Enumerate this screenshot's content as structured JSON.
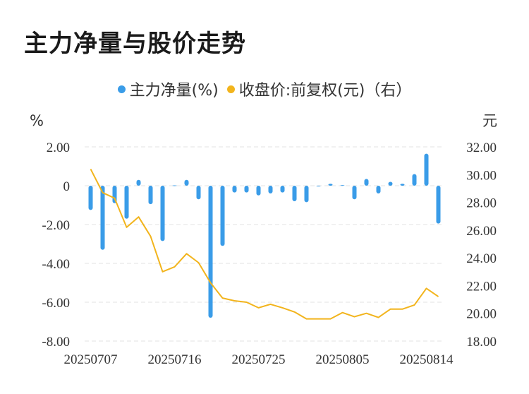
{
  "title": "主力净量与股价走势",
  "legend": {
    "series1": "主力净量(%)",
    "series2": "收盘价:前复权(元)（右）"
  },
  "colors": {
    "bars": "#3a9ce8",
    "line": "#f2b41c",
    "grid": "#e3e3e3"
  },
  "chart_data": {
    "type": "bar",
    "title": "主力净量与股价走势",
    "y_left_unit": "%",
    "y_right_unit": "元",
    "ylim_left": [
      -8,
      2
    ],
    "ylim_right": [
      18,
      32
    ],
    "y_left_ticks": [
      "2.00",
      "0",
      "-2.00",
      "-4.00",
      "-6.00",
      "-8.00"
    ],
    "y_right_ticks": [
      "32.00",
      "30.00",
      "28.00",
      "26.00",
      "24.00",
      "22.00",
      "20.00",
      "18.00"
    ],
    "x_tick_labels": [
      "20250707",
      "20250716",
      "20250725",
      "20250805",
      "20250814"
    ],
    "x_tick_indices": [
      0,
      7,
      14,
      21,
      28
    ],
    "series": [
      {
        "name": "主力净量(%)",
        "type": "bar",
        "axis": "left",
        "values": [
          -1.25,
          -3.3,
          -0.9,
          -1.7,
          0.3,
          -0.95,
          -2.85,
          0.02,
          0.3,
          -0.7,
          -6.8,
          -3.1,
          -0.35,
          -0.35,
          -0.5,
          -0.4,
          -0.35,
          -0.8,
          -0.85,
          -0.03,
          0.1,
          0.03,
          -0.7,
          0.35,
          -0.4,
          0.2,
          0.1,
          0.6,
          1.65,
          -1.95
        ]
      },
      {
        "name": "收盘价:前复权(元)（右）",
        "type": "line",
        "axis": "right",
        "values": [
          30.4,
          28.7,
          28.3,
          26.2,
          26.95,
          25.55,
          23.0,
          23.35,
          24.3,
          23.65,
          22.2,
          21.1,
          20.9,
          20.8,
          20.4,
          20.65,
          20.4,
          20.1,
          19.6,
          19.6,
          19.6,
          20.05,
          19.75,
          20.0,
          19.7,
          20.3,
          20.3,
          20.6,
          21.8,
          21.2
        ]
      }
    ]
  }
}
